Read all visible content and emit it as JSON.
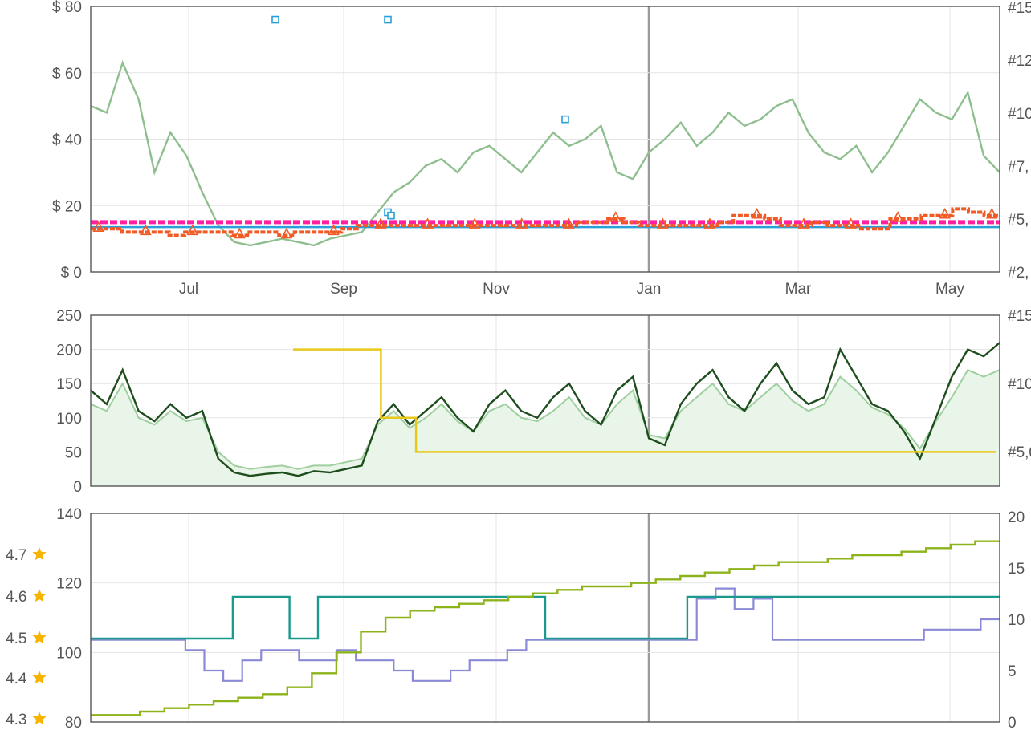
{
  "chart_data": [
    {
      "type": "line",
      "panel": "price",
      "x_ticks": [
        "Jul",
        "Sep",
        "Nov",
        "Jan",
        "Mar",
        "May"
      ],
      "y_left_ticks": [
        "$ 0",
        "$ 20",
        "$ 40",
        "$ 60",
        "$ 80"
      ],
      "y_right_ticks": [
        "#2,",
        "#5,",
        "#7,",
        "#10",
        "#12",
        "#15"
      ],
      "ylim": [
        0,
        80
      ],
      "grid": true,
      "colors": {
        "amazon": "#8fbf8f",
        "new_3p": "#f15a24",
        "used": "#ff1fa0",
        "buybox": "#2a9fd8"
      },
      "series": [
        {
          "values": [
            50,
            48,
            63,
            52,
            30,
            42,
            35,
            24,
            14,
            9,
            8,
            9,
            10,
            9,
            8,
            10,
            11,
            12,
            18,
            24,
            27,
            32,
            34,
            30,
            36,
            38,
            34,
            30,
            36,
            42,
            38,
            40,
            44,
            30,
            28,
            36,
            40,
            45,
            38,
            42,
            48,
            44,
            46,
            50,
            52,
            42,
            36,
            34,
            38,
            30,
            36,
            44,
            52,
            48,
            46,
            54,
            35,
            30
          ]
        },
        {
          "values": [
            13,
            13,
            12,
            12,
            12,
            11,
            12,
            12,
            12,
            11,
            12,
            12,
            11,
            12,
            12,
            12,
            13,
            14,
            14,
            14,
            14,
            14,
            14,
            14,
            14,
            14,
            14,
            14,
            14,
            14,
            14,
            15,
            15,
            16,
            15,
            14,
            14,
            14,
            14,
            14,
            15,
            17,
            17,
            16,
            14,
            14,
            15,
            14,
            14,
            13,
            13,
            16,
            16,
            17,
            17,
            19,
            18,
            17
          ]
        },
        {
          "values": [
            15,
            15,
            15,
            15,
            15,
            15,
            15,
            15,
            15,
            15,
            15,
            15,
            15,
            15,
            15,
            15,
            15,
            15,
            15,
            15,
            15,
            15,
            15,
            15,
            15,
            15,
            15,
            15,
            15,
            15,
            15,
            15,
            15,
            15,
            15,
            15,
            15,
            15,
            15,
            15,
            15,
            15,
            15,
            15,
            15,
            15,
            15,
            15,
            15,
            15,
            15,
            15,
            15,
            15,
            15,
            15,
            15,
            15
          ]
        },
        {
          "values": [
            13.5,
            13.5,
            13.5,
            13.5,
            13.5,
            13.5,
            13.5,
            13.5,
            13.5,
            13.5,
            13.5,
            13.5,
            13.5,
            13.5,
            13.5,
            13.5,
            13.5,
            13.5,
            13.5,
            13.5,
            13.5,
            13.5,
            13.5,
            13.5,
            13.5,
            13.5,
            13.5,
            13.5,
            13.5,
            13.5,
            13.5,
            13.5,
            13.5,
            13.5,
            13.5,
            13.5,
            13.5,
            13.5,
            13.5,
            13.5,
            13.5,
            13.5,
            13.5,
            13.5,
            13.5,
            13.5,
            13.5,
            13.5,
            13.5,
            13.5,
            13.5,
            13.5,
            13.5,
            13.5,
            13.5,
            13.5,
            13.5,
            13.5
          ]
        }
      ],
      "outlier_points": [
        76,
        76,
        46,
        18,
        17
      ]
    },
    {
      "type": "line",
      "panel": "sales-rank",
      "x_ticks": [
        "Jul",
        "Sep",
        "Nov",
        "Jan",
        "Mar",
        "May"
      ],
      "y_left_ticks": [
        "0",
        "50",
        "100",
        "150",
        "200",
        "250"
      ],
      "y_right_ticks": [
        "#5,0",
        "#10",
        "#15"
      ],
      "ylim": [
        0,
        250
      ],
      "grid": true,
      "colors": {
        "rank": "#1e4d1e",
        "rank_avg": "#9fcf9f",
        "area": "#e8f5e8",
        "offers": "#e8c81a"
      },
      "series": [
        {
          "values": [
            140,
            120,
            170,
            110,
            95,
            120,
            100,
            110,
            40,
            20,
            15,
            18,
            20,
            15,
            22,
            20,
            25,
            30,
            95,
            120,
            90,
            110,
            130,
            100,
            80,
            120,
            140,
            110,
            100,
            130,
            150,
            110,
            90,
            140,
            160,
            70,
            60,
            120,
            150,
            170,
            130,
            110,
            150,
            180,
            140,
            120,
            130,
            200,
            160,
            120,
            110,
            80,
            40,
            100,
            160,
            200,
            190,
            210
          ]
        },
        {
          "values": [
            120,
            110,
            150,
            100,
            90,
            110,
            95,
            100,
            50,
            30,
            25,
            28,
            30,
            25,
            30,
            30,
            35,
            40,
            90,
            110,
            85,
            100,
            120,
            95,
            80,
            110,
            120,
            100,
            95,
            110,
            130,
            100,
            90,
            120,
            140,
            75,
            70,
            110,
            130,
            150,
            120,
            110,
            130,
            150,
            125,
            110,
            120,
            160,
            140,
            115,
            105,
            85,
            55,
            95,
            130,
            170,
            160,
            170
          ]
        },
        {
          "values": [
            200,
            200,
            200,
            200,
            200,
            100,
            100,
            50,
            50,
            50,
            50,
            50,
            50,
            50,
            50,
            50,
            50,
            50,
            50,
            50,
            50,
            50,
            50,
            50,
            50,
            50,
            50,
            50,
            50,
            50,
            50,
            50,
            50,
            50,
            50,
            50,
            50,
            50,
            50,
            50
          ]
        }
      ]
    },
    {
      "type": "line",
      "panel": "rating-reviews",
      "x_ticks": [
        "Jul",
        "Sep",
        "Nov",
        "Jan",
        "Mar",
        "May"
      ],
      "y_left_ticks": [
        "80",
        "100",
        "120",
        "140"
      ],
      "y_right_ticks": [
        "0",
        "5",
        "10",
        "15",
        "20"
      ],
      "rating_ticks": [
        "4.3",
        "4.4",
        "4.5",
        "4.6",
        "4.7"
      ],
      "ylim": [
        80,
        140
      ],
      "grid": true,
      "colors": {
        "reviews": "#8db31a",
        "rating": "#1a9a8e",
        "offers": "#8a8ad8",
        "star": "#f5b400"
      },
      "series": [
        {
          "values": [
            82,
            82,
            83,
            84,
            85,
            86,
            87,
            88,
            90,
            94,
            100,
            106,
            110,
            112,
            113,
            114,
            115,
            116,
            117,
            118,
            119,
            119,
            120,
            121,
            122,
            123,
            124,
            125,
            126,
            126,
            127,
            128,
            128,
            129,
            130,
            131,
            132
          ]
        },
        {
          "values": [
            4.5,
            4.5,
            4.5,
            4.5,
            4.5,
            4.6,
            4.6,
            4.5,
            4.6,
            4.6,
            4.6,
            4.6,
            4.6,
            4.6,
            4.6,
            4.6,
            4.5,
            4.5,
            4.5,
            4.5,
            4.5,
            4.6,
            4.6,
            4.6,
            4.6,
            4.6,
            4.6,
            4.6,
            4.6,
            4.6,
            4.6,
            4.6
          ]
        },
        {
          "values": [
            8,
            8,
            8,
            8,
            8,
            7,
            5,
            4,
            6,
            7,
            7,
            6,
            6,
            7,
            6,
            6,
            5,
            4,
            4,
            5,
            6,
            6,
            7,
            8,
            8,
            8,
            8,
            8,
            8,
            8,
            8,
            8,
            12,
            13,
            11,
            12,
            8,
            8,
            8,
            8,
            8,
            8,
            8,
            8,
            9,
            9,
            9,
            10
          ]
        }
      ]
    }
  ]
}
